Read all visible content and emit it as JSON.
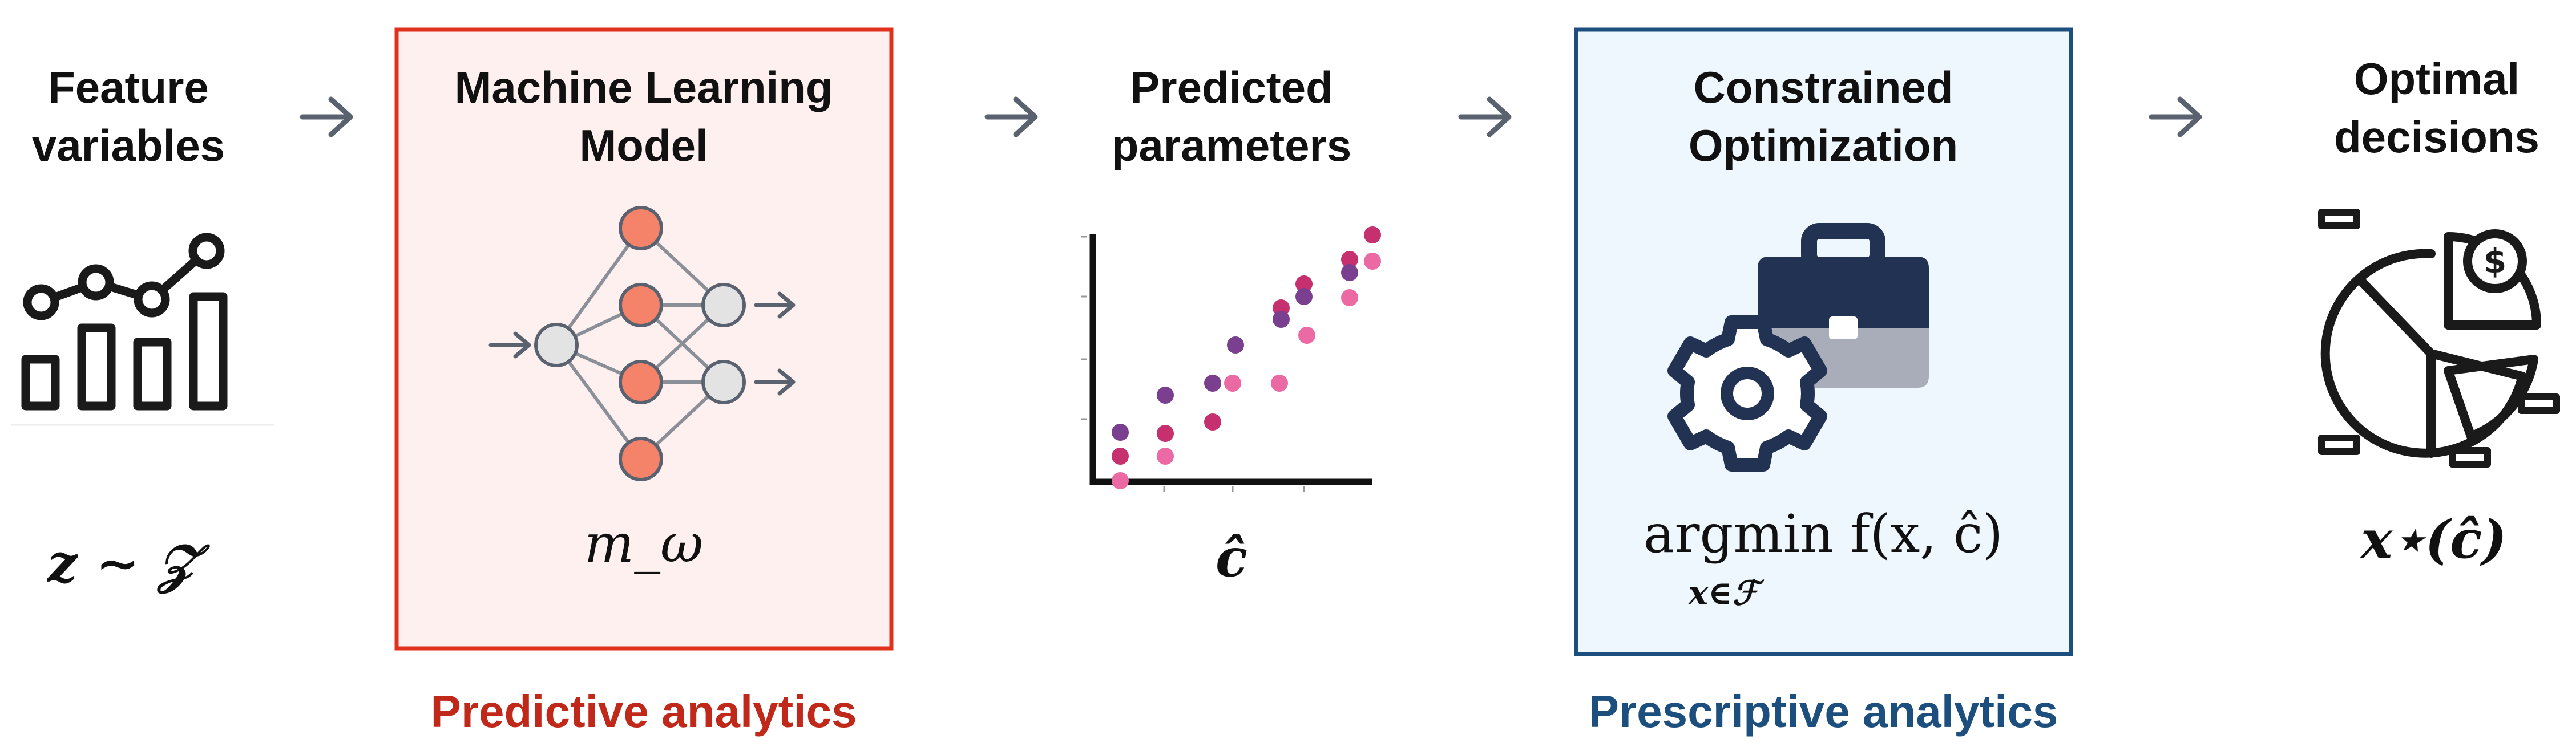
{
  "stages": {
    "features": {
      "title_line1": "Feature",
      "title_line2": "variables",
      "math": "z ∼ 𝒵"
    },
    "ml_model": {
      "title_line1": "Machine Learning",
      "title_line2": "Model",
      "math": "m_ω"
    },
    "predicted": {
      "title_line1": "Predicted",
      "title_line2": "parameters",
      "math": "ĉ"
    },
    "optimization": {
      "title_line1": "Constrained",
      "title_line2": "Optimization",
      "math_main": "argmin f(x, ĉ)",
      "math_sub": "x∈ℱ"
    },
    "decisions": {
      "title_line1": "Optimal",
      "title_line2": "decisions",
      "math": "x⋆(ĉ)"
    }
  },
  "captions": {
    "predictive": "Predictive analytics",
    "prescriptive": "Prescriptive analytics"
  },
  "colors": {
    "predictive_border": "#e0301e",
    "predictive_fill": "#fdf0ee",
    "predictive_text": "#c0281a",
    "prescriptive_border": "#1c4e7e",
    "prescriptive_fill": "#eef7fd",
    "prescriptive_text": "#1c4e7e",
    "arrow": "#5a6270",
    "neuron_orange": "#f4836a",
    "neuron_gray": "#e3e3e3",
    "briefcase_dark": "#213252",
    "briefcase_light": "#a8adb9"
  },
  "icons": {
    "features": "bar-line-chart-icon",
    "ml_model": "neural-network-icon",
    "predicted": "scatter-plot-icon",
    "optimization": "briefcase-gear-icon",
    "decisions": "pie-chart-dollar-icon"
  }
}
